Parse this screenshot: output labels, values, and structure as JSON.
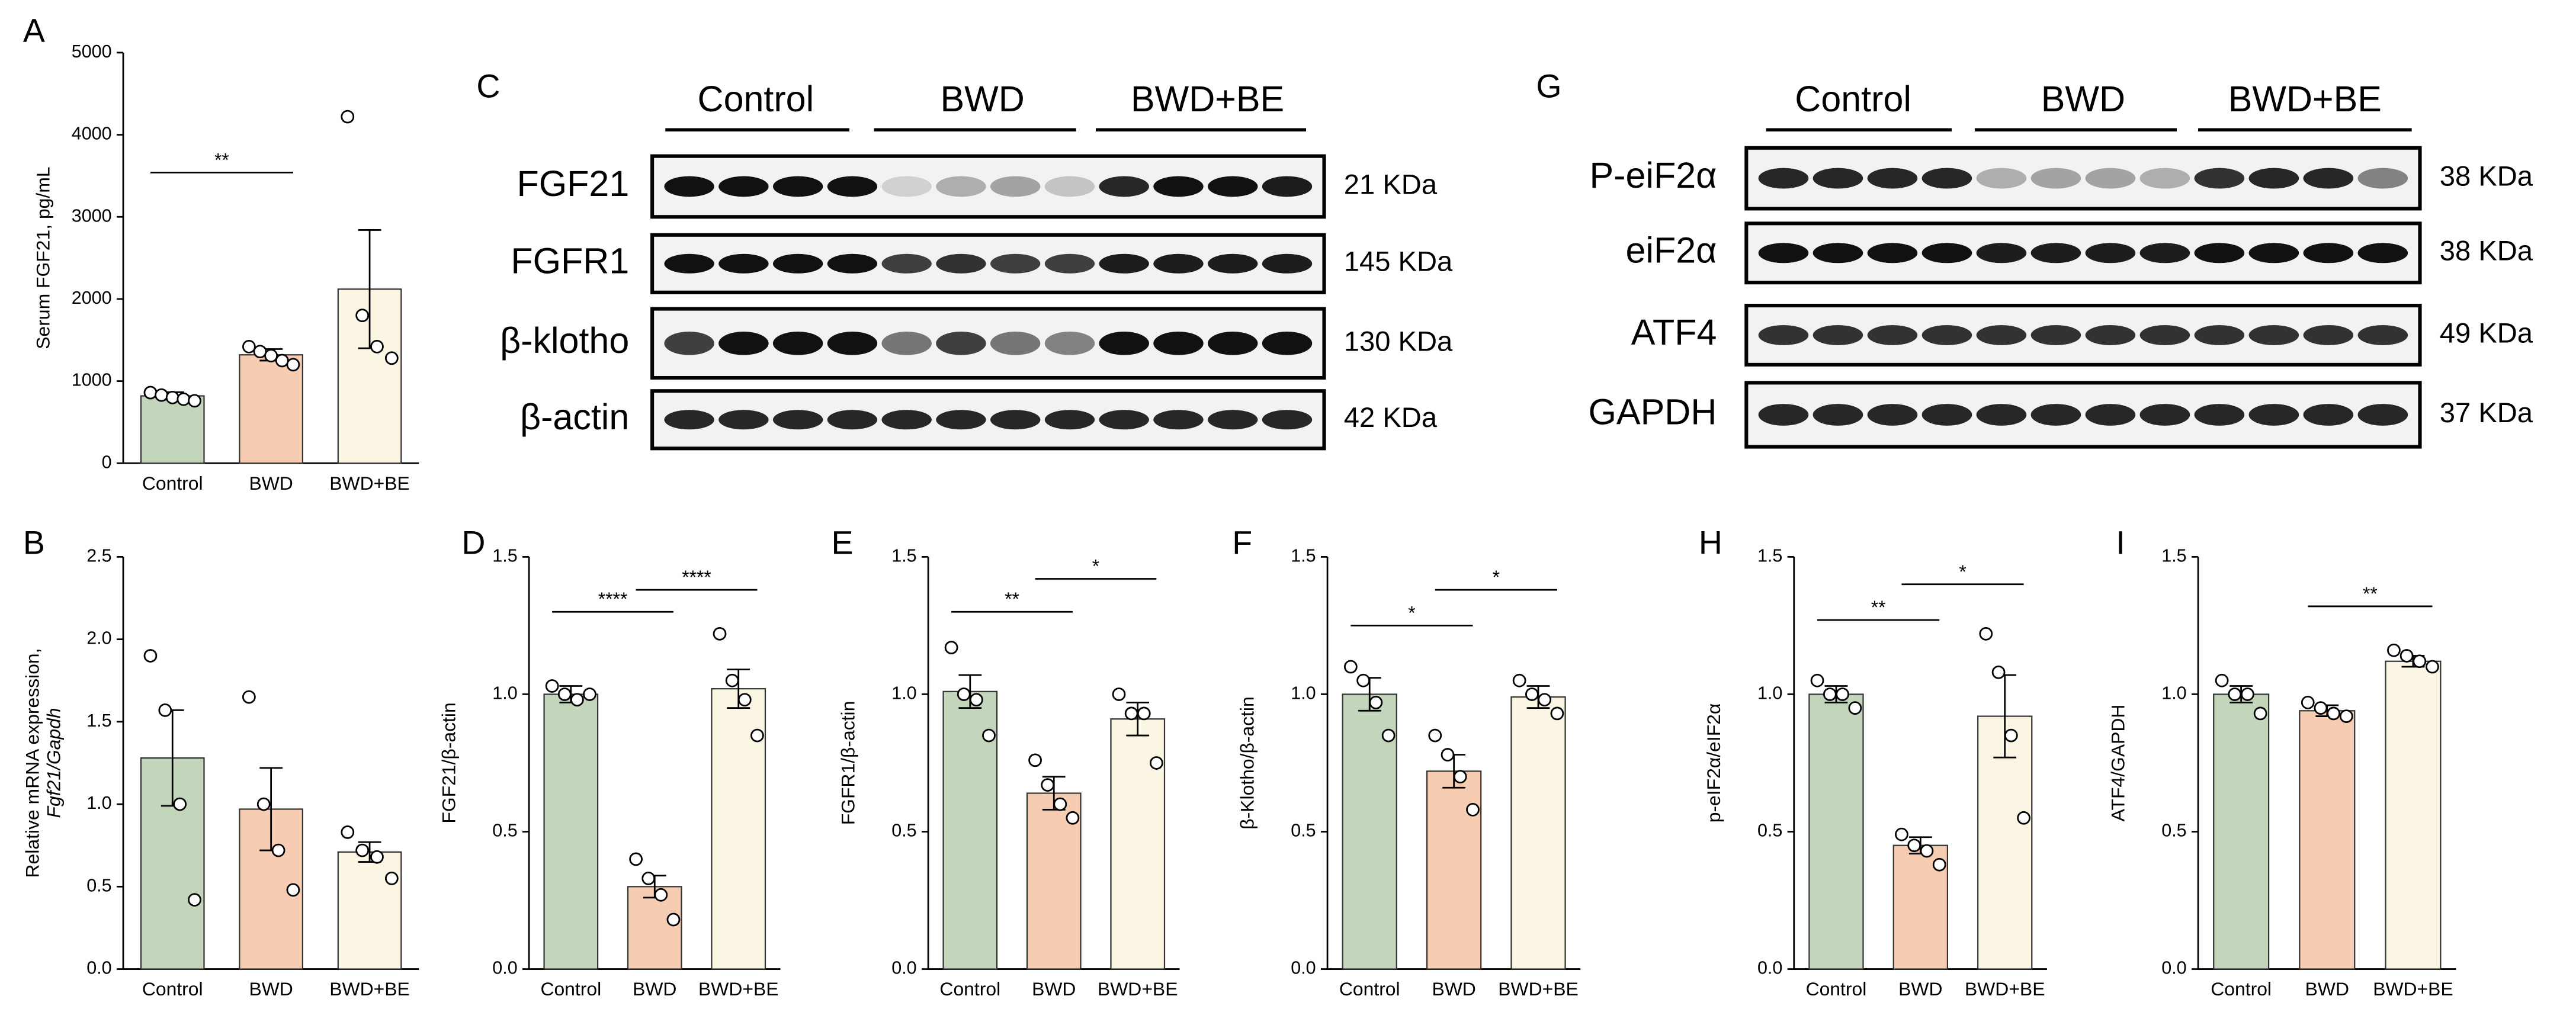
{
  "chart_data": [
    {
      "type": "bar",
      "panel": "A",
      "ylabel": [
        "Serum FGF21, pg/mL"
      ],
      "categories": [
        "Control",
        "BWD",
        "BWD+BE"
      ],
      "values": [
        820,
        1320,
        2120
      ],
      "errors": [
        45,
        70,
        720
      ],
      "points": [
        [
          860,
          830,
          800,
          780,
          760
        ],
        [
          1420,
          1360,
          1310,
          1250,
          1200
        ],
        [
          4220,
          1800,
          1420,
          1280
        ]
      ],
      "colors": [
        "#c3d5bb",
        "#f6ccb2",
        "#faf6e3"
      ],
      "ylim": [
        0,
        5000
      ],
      "yticks": [
        0,
        1000,
        2000,
        3000,
        4000,
        5000
      ],
      "annotations": [
        {
          "text": "**",
          "from": 0,
          "to": 1,
          "y": 3540
        }
      ]
    },
    {
      "type": "bar",
      "panel": "B",
      "ylabel": [
        "Relative mRNA expression,",
        "Fgf21/Gapdh"
      ],
      "categories": [
        "Control",
        "BWD",
        "BWD+BE"
      ],
      "values": [
        1.28,
        0.97,
        0.71
      ],
      "errors": [
        0.29,
        0.25,
        0.06
      ],
      "points": [
        [
          1.9,
          1.57,
          1.0,
          0.42
        ],
        [
          1.65,
          1.0,
          0.72,
          0.48
        ],
        [
          0.83,
          0.72,
          0.68,
          0.55
        ]
      ],
      "colors": [
        "#c3d5bb",
        "#f6ccb2",
        "#faf6e3"
      ],
      "ylim": [
        0,
        2.5
      ],
      "yticks": [
        {
          "value": 0,
          "label": "0.0"
        },
        0.5,
        {
          "value": 1,
          "label": "1.0"
        },
        1.5,
        {
          "value": 2,
          "label": "2.0"
        },
        2.5
      ],
      "annotations": []
    },
    {
      "type": "bar",
      "panel": "D",
      "ylabel": [
        "FGF21/β-actin"
      ],
      "categories": [
        "Control",
        "BWD",
        "BWD+BE"
      ],
      "values": [
        1.0,
        0.3,
        1.02
      ],
      "errors": [
        0.03,
        0.04,
        0.07
      ],
      "points": [
        [
          1.03,
          1.0,
          0.98,
          1.0
        ],
        [
          0.4,
          0.33,
          0.27,
          0.18
        ],
        [
          1.22,
          1.05,
          0.98,
          0.85
        ]
      ],
      "colors": [
        "#c3d5bb",
        "#f6ccb2",
        "#faf6e3"
      ],
      "ylim": [
        0,
        1.5
      ],
      "yticks": [
        {
          "value": 0,
          "label": "0.0"
        },
        0.5,
        {
          "value": 1,
          "label": "1.0"
        },
        1.5
      ],
      "annotations": [
        {
          "text": "****",
          "from": 0,
          "to": 1,
          "y": 1.3
        },
        {
          "text": "****",
          "from": 1,
          "to": 2,
          "y": 1.38
        }
      ]
    },
    {
      "type": "bar",
      "panel": "E",
      "ylabel": [
        "FGFR1/β-actin"
      ],
      "categories": [
        "Control",
        "BWD",
        "BWD+BE"
      ],
      "values": [
        1.01,
        0.64,
        0.91
      ],
      "errors": [
        0.06,
        0.06,
        0.06
      ],
      "points": [
        [
          1.17,
          1.0,
          0.98,
          0.85
        ],
        [
          0.76,
          0.67,
          0.6,
          0.55
        ],
        [
          1.0,
          0.93,
          0.93,
          0.75
        ]
      ],
      "colors": [
        "#c3d5bb",
        "#f6ccb2",
        "#faf6e3"
      ],
      "ylim": [
        0,
        1.5
      ],
      "yticks": [
        {
          "value": 0,
          "label": "0.0"
        },
        0.5,
        {
          "value": 1,
          "label": "1.0"
        },
        1.5
      ],
      "annotations": [
        {
          "text": "**",
          "from": 0,
          "to": 1,
          "y": 1.3
        },
        {
          "text": "*",
          "from": 1,
          "to": 2,
          "y": 1.42
        }
      ]
    },
    {
      "type": "bar",
      "panel": "F",
      "ylabel": [
        "β-Klotho/β-actin"
      ],
      "categories": [
        "Control",
        "BWD",
        "BWD+BE"
      ],
      "values": [
        1.0,
        0.72,
        0.99
      ],
      "errors": [
        0.06,
        0.06,
        0.04
      ],
      "points": [
        [
          1.1,
          1.05,
          0.97,
          0.85
        ],
        [
          0.85,
          0.78,
          0.7,
          0.58
        ],
        [
          1.05,
          1.0,
          0.98,
          0.93
        ]
      ],
      "colors": [
        "#c3d5bb",
        "#f6ccb2",
        "#faf6e3"
      ],
      "ylim": [
        0,
        1.5
      ],
      "yticks": [
        {
          "value": 0,
          "label": "0.0"
        },
        0.5,
        {
          "value": 1,
          "label": "1.0"
        },
        1.5
      ],
      "annotations": [
        {
          "text": "*",
          "from": 0,
          "to": 1,
          "y": 1.25
        },
        {
          "text": "*",
          "from": 1,
          "to": 2,
          "y": 1.38
        }
      ]
    },
    {
      "type": "bar",
      "panel": "H",
      "ylabel": [
        "p-eIF2α/eIF2α"
      ],
      "categories": [
        "Control",
        "BWD",
        "BWD+BE"
      ],
      "values": [
        1.0,
        0.45,
        0.92
      ],
      "errors": [
        0.03,
        0.03,
        0.15
      ],
      "points": [
        [
          1.05,
          1.0,
          1.0,
          0.95
        ],
        [
          0.49,
          0.45,
          0.43,
          0.38
        ],
        [
          1.22,
          1.08,
          0.85,
          0.55
        ]
      ],
      "colors": [
        "#c3d5bb",
        "#f6ccb2",
        "#faf6e3"
      ],
      "ylim": [
        0,
        1.5
      ],
      "yticks": [
        {
          "value": 0,
          "label": "0.0"
        },
        0.5,
        {
          "value": 1,
          "label": "1.0"
        },
        1.5
      ],
      "annotations": [
        {
          "text": "**",
          "from": 0,
          "to": 1,
          "y": 1.27
        },
        {
          "text": "*",
          "from": 1,
          "to": 2,
          "y": 1.4
        }
      ]
    },
    {
      "type": "bar",
      "panel": "I",
      "ylabel": [
        "ATF4/GAPDH"
      ],
      "categories": [
        "Control",
        "BWD",
        "BWD+BE"
      ],
      "values": [
        1.0,
        0.94,
        1.12
      ],
      "errors": [
        0.03,
        0.02,
        0.02
      ],
      "points": [
        [
          1.05,
          1.0,
          1.0,
          0.93
        ],
        [
          0.97,
          0.95,
          0.93,
          0.92
        ],
        [
          1.16,
          1.14,
          1.12,
          1.1
        ]
      ],
      "colors": [
        "#c3d5bb",
        "#f6ccb2",
        "#faf6e3"
      ],
      "ylim": [
        0,
        1.5
      ],
      "yticks": [
        {
          "value": 0,
          "label": "0.0"
        },
        0.5,
        {
          "value": 1,
          "label": "1.0"
        },
        1.5
      ],
      "annotations": [
        {
          "text": "**",
          "from": 1,
          "to": 2,
          "y": 1.32
        }
      ]
    }
  ],
  "blots": [
    {
      "panel": "C",
      "groups": [
        "Control",
        "BWD",
        "BWD+BE"
      ],
      "rows": [
        {
          "name": "FGF21",
          "size": "21 KDa"
        },
        {
          "name": "FGFR1",
          "size": "145 KDa"
        },
        {
          "name": "β-klotho",
          "size": "130 KDa"
        },
        {
          "name": "β-actin",
          "size": "42 KDa"
        }
      ]
    },
    {
      "panel": "G",
      "groups": [
        "Control",
        "BWD",
        "BWD+BE"
      ],
      "rows": [
        {
          "name": "P-eiF2α",
          "size": "38 KDa"
        },
        {
          "name": "eiF2α",
          "size": "38 KDa"
        },
        {
          "name": "ATF4",
          "size": "49 KDa"
        },
        {
          "name": "GAPDH",
          "size": "37 KDa"
        }
      ]
    }
  ]
}
